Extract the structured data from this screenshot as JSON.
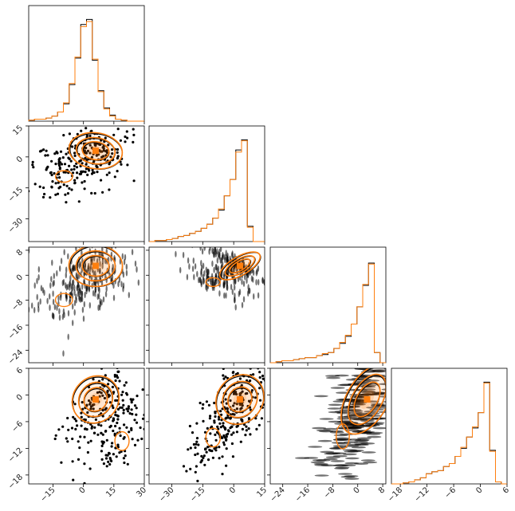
{
  "chart_data": {
    "type": "corner",
    "title": "",
    "n_params": 4,
    "colors": {
      "reference": "#000000",
      "overlay": "#ff7f0e"
    },
    "series": [
      {
        "color": "#000000"
      },
      {
        "color": "#ff7f0e"
      }
    ],
    "axes": [
      {
        "range": [
          -27,
          30
        ],
        "ticks": [
          -15,
          0,
          15,
          30
        ],
        "tick_labels": [
          "−15",
          "0",
          "15",
          "30"
        ]
      },
      {
        "range": [
          -41,
          15
        ],
        "ticks": [
          -30,
          -15,
          0,
          15
        ],
        "tick_labels": [
          "−30",
          "−15",
          "0",
          "15"
        ]
      },
      {
        "range": [
          -28,
          9
        ],
        "ticks": [
          -24,
          -16,
          -8,
          0,
          8
        ],
        "tick_labels": [
          "−24",
          "−16",
          "−8",
          "0",
          "8"
        ]
      },
      {
        "range": [
          -20,
          6
        ],
        "ticks": [
          -18,
          -12,
          -6,
          0,
          6
        ],
        "tick_labels": [
          "−18",
          "−12",
          "−6",
          "0",
          "6"
        ]
      }
    ],
    "histograms": [
      {
        "param": 0,
        "bins": 20,
        "black": [
          0.01,
          0.02,
          0.02,
          0.03,
          0.05,
          0.09,
          0.17,
          0.36,
          0.62,
          0.95,
          1.0,
          0.6,
          0.3,
          0.13,
          0.06,
          0.02,
          0.01,
          0,
          0,
          0
        ],
        "orange": [
          0.01,
          0.02,
          0.02,
          0.03,
          0.05,
          0.09,
          0.18,
          0.37,
          0.63,
          0.93,
          0.98,
          0.61,
          0.29,
          0.12,
          0.05,
          0.02,
          0.01,
          0,
          0,
          0
        ]
      },
      {
        "param": 1,
        "bins": 20,
        "black": [
          0,
          0.01,
          0.01,
          0.02,
          0.03,
          0.05,
          0.06,
          0.08,
          0.1,
          0.13,
          0.17,
          0.23,
          0.31,
          0.45,
          0.61,
          0.9,
          1.0,
          0.15,
          0,
          0
        ],
        "orange": [
          0,
          0.01,
          0.01,
          0.02,
          0.03,
          0.05,
          0.06,
          0.08,
          0.1,
          0.13,
          0.17,
          0.23,
          0.32,
          0.45,
          0.61,
          0.88,
          0.99,
          0.14,
          0,
          0
        ]
      },
      {
        "param": 2,
        "bins": 20,
        "black": [
          0,
          0.01,
          0.02,
          0.02,
          0.03,
          0.04,
          0.05,
          0.05,
          0.07,
          0.08,
          0.1,
          0.14,
          0.19,
          0.26,
          0.38,
          0.55,
          0.76,
          0.98,
          0.1,
          0
        ],
        "orange": [
          0,
          0.01,
          0.02,
          0.02,
          0.03,
          0.04,
          0.05,
          0.05,
          0.07,
          0.09,
          0.1,
          0.14,
          0.2,
          0.27,
          0.38,
          0.55,
          0.77,
          0.97,
          0.1,
          0
        ],
        "bins_range": [
          -28,
          8
        ]
      },
      {
        "param": 3,
        "bins": 20,
        "black": [
          0,
          0,
          0.01,
          0.02,
          0.04,
          0.06,
          0.1,
          0.12,
          0.13,
          0.17,
          0.2,
          0.27,
          0.35,
          0.46,
          0.55,
          0.7,
          1.0,
          0.33,
          0.02,
          0
        ],
        "orange": [
          0,
          0,
          0.01,
          0.02,
          0.04,
          0.06,
          0.1,
          0.12,
          0.13,
          0.17,
          0.2,
          0.27,
          0.36,
          0.46,
          0.56,
          0.7,
          0.99,
          0.32,
          0.02,
          0
        ]
      }
    ],
    "pairs": [
      {
        "row": 1,
        "col": 0,
        "peak": [
          6,
          3
        ],
        "spread": [
          6,
          4
        ],
        "rho": -0.2,
        "tail_dir": [
          -1,
          -1.2
        ]
      },
      {
        "row": 2,
        "col": 0,
        "peak": [
          6,
          3
        ],
        "spread": [
          6,
          3
        ],
        "rho": 0.0,
        "tail_dir": [
          -1,
          -1.4
        ]
      },
      {
        "row": 3,
        "col": 0,
        "peak": [
          6,
          -1
        ],
        "spread": [
          5,
          3
        ],
        "rho": -0.7,
        "tail_dir": [
          1,
          -1.2
        ]
      },
      {
        "row": 2,
        "col": 1,
        "peak": [
          3,
          3
        ],
        "spread": [
          5,
          2
        ],
        "rho": 0.95,
        "tail_dir": [
          -1,
          -1
        ]
      },
      {
        "row": 3,
        "col": 1,
        "peak": [
          3,
          -1
        ],
        "spread": [
          5,
          3
        ],
        "rho": -0.6,
        "tail_dir": [
          -1,
          -1.1
        ]
      },
      {
        "row": 3,
        "col": 2,
        "peak": [
          3,
          -1
        ],
        "spread": [
          3,
          4
        ],
        "rho": -0.3,
        "tail_dir": [
          -1,
          -0.8
        ]
      }
    ]
  }
}
